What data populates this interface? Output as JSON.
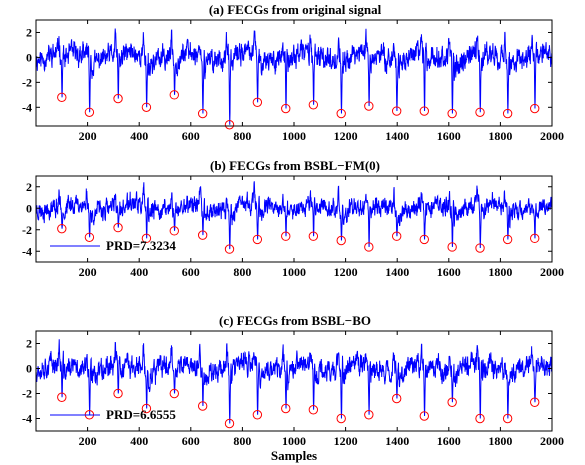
{
  "colors": {
    "signal": "#0000ff",
    "marker": "#ff0000",
    "axis": "#000000",
    "background": "#ffffff"
  },
  "xlabel": "Samples",
  "chart_data": [
    {
      "type": "line",
      "title": "(a) FECGs from original signal",
      "xlabel": "",
      "ylabel": "",
      "xlim": [
        0,
        2000
      ],
      "ylim": [
        -5.5,
        3
      ],
      "xticks": [
        200,
        400,
        600,
        800,
        1000,
        1200,
        1400,
        1600,
        1800,
        2000
      ],
      "yticks": [
        2,
        0,
        -2,
        -4
      ],
      "legend": null,
      "peaks": [
        {
          "x": 100,
          "y": -3.2
        },
        {
          "x": 207,
          "y": -4.4
        },
        {
          "x": 318,
          "y": -3.3
        },
        {
          "x": 428,
          "y": -4.0
        },
        {
          "x": 536,
          "y": -3.0
        },
        {
          "x": 646,
          "y": -4.5
        },
        {
          "x": 750,
          "y": -5.4
        },
        {
          "x": 858,
          "y": -3.6
        },
        {
          "x": 968,
          "y": -4.1
        },
        {
          "x": 1075,
          "y": -3.8
        },
        {
          "x": 1183,
          "y": -4.5
        },
        {
          "x": 1290,
          "y": -3.9
        },
        {
          "x": 1398,
          "y": -4.3
        },
        {
          "x": 1505,
          "y": -4.3
        },
        {
          "x": 1613,
          "y": -4.5
        },
        {
          "x": 1721,
          "y": -4.4
        },
        {
          "x": 1828,
          "y": -4.5
        },
        {
          "x": 1933,
          "y": -4.1
        }
      ],
      "seed": 11
    },
    {
      "type": "line",
      "title": "(b) FECGs from BSBL−FM(0)",
      "xlabel": "",
      "ylabel": "",
      "xlim": [
        0,
        2000
      ],
      "ylim": [
        -5,
        3
      ],
      "xticks": [
        200,
        400,
        600,
        800,
        1000,
        1200,
        1400,
        1600,
        1800,
        2000
      ],
      "yticks": [
        2,
        0,
        -2,
        -4
      ],
      "legend": {
        "label": "PRD=7.3234",
        "position": "lower-left"
      },
      "peaks": [
        {
          "x": 100,
          "y": -1.9
        },
        {
          "x": 207,
          "y": -2.7
        },
        {
          "x": 318,
          "y": -1.8
        },
        {
          "x": 428,
          "y": -2.8
        },
        {
          "x": 536,
          "y": -2.1
        },
        {
          "x": 646,
          "y": -2.5
        },
        {
          "x": 750,
          "y": -3.8
        },
        {
          "x": 858,
          "y": -2.9
        },
        {
          "x": 968,
          "y": -2.6
        },
        {
          "x": 1075,
          "y": -2.6
        },
        {
          "x": 1183,
          "y": -3.0
        },
        {
          "x": 1290,
          "y": -3.6
        },
        {
          "x": 1398,
          "y": -2.6
        },
        {
          "x": 1505,
          "y": -2.9
        },
        {
          "x": 1613,
          "y": -3.6
        },
        {
          "x": 1721,
          "y": -3.7
        },
        {
          "x": 1828,
          "y": -2.9
        },
        {
          "x": 1933,
          "y": -2.8
        }
      ],
      "seed": 23
    },
    {
      "type": "line",
      "title": "(c) FECGs from BSBL−BO",
      "xlabel": "Samples",
      "ylabel": "",
      "xlim": [
        0,
        2000
      ],
      "ylim": [
        -5,
        3
      ],
      "xticks": [
        200,
        400,
        600,
        800,
        1000,
        1200,
        1400,
        1600,
        1800,
        2000
      ],
      "yticks": [
        2,
        0,
        -2,
        -4
      ],
      "legend": {
        "label": "PRD=6.6555",
        "position": "lower-left"
      },
      "peaks": [
        {
          "x": 100,
          "y": -2.3
        },
        {
          "x": 207,
          "y": -3.7
        },
        {
          "x": 318,
          "y": -2.0
        },
        {
          "x": 428,
          "y": -3.2
        },
        {
          "x": 536,
          "y": -2.0
        },
        {
          "x": 646,
          "y": -3.0
        },
        {
          "x": 750,
          "y": -4.4
        },
        {
          "x": 858,
          "y": -3.7
        },
        {
          "x": 968,
          "y": -3.2
        },
        {
          "x": 1075,
          "y": -3.3
        },
        {
          "x": 1183,
          "y": -4.0
        },
        {
          "x": 1290,
          "y": -3.7
        },
        {
          "x": 1398,
          "y": -2.4
        },
        {
          "x": 1505,
          "y": -3.8
        },
        {
          "x": 1613,
          "y": -2.7
        },
        {
          "x": 1721,
          "y": -4.0
        },
        {
          "x": 1828,
          "y": -4.0
        },
        {
          "x": 1933,
          "y": -2.7
        }
      ],
      "seed": 37
    }
  ]
}
